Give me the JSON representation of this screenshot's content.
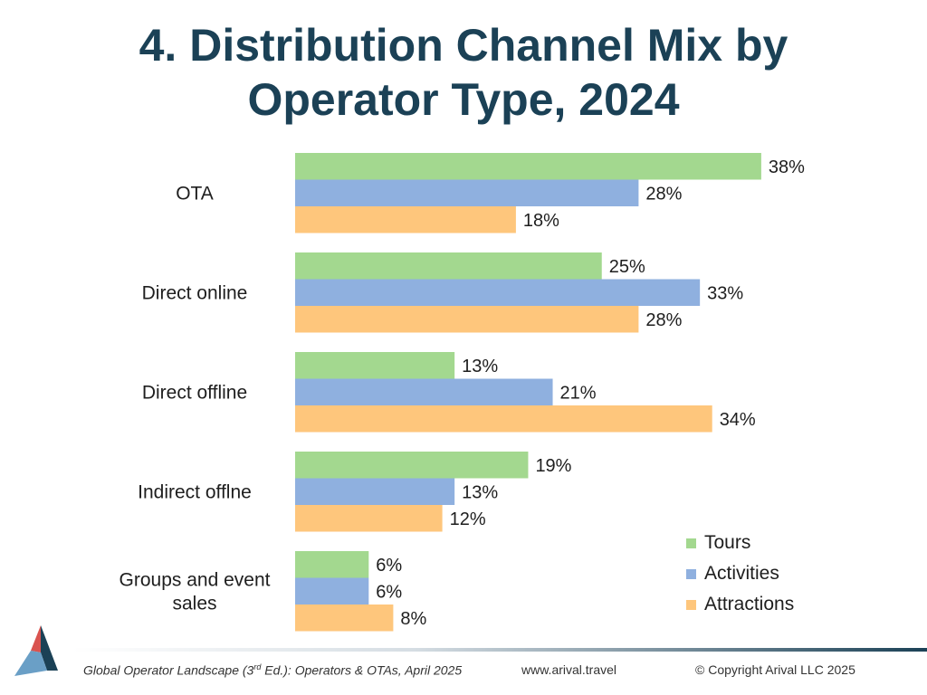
{
  "title_line1": "4. Distribution Channel Mix by",
  "title_line2": "Operator Type, 2024",
  "colors": {
    "tours": "#a3d88f",
    "activities": "#8fb0df",
    "attractions": "#fec67c",
    "title": "#1b4156",
    "logo_red": "#d9534f",
    "logo_navy": "#1b4156",
    "logo_blue": "#6a9fc6"
  },
  "chart_data": {
    "type": "bar",
    "orientation": "horizontal",
    "title": "4. Distribution Channel Mix by Operator Type, 2024",
    "categories": [
      "OTA",
      "Direct online",
      "Direct offline",
      "Indirect offlne",
      "Groups and event sales"
    ],
    "series": [
      {
        "name": "Tours",
        "values": [
          38,
          25,
          13,
          19,
          6
        ]
      },
      {
        "name": "Activities",
        "values": [
          28,
          33,
          21,
          13,
          6
        ]
      },
      {
        "name": "Attractions",
        "values": [
          18,
          28,
          34,
          12,
          8
        ]
      }
    ],
    "value_suffix": "%",
    "xlim": [
      0,
      40
    ],
    "grid": false,
    "legend": "bottom-right"
  },
  "legend": [
    "Tours",
    "Activities",
    "Attractions"
  ],
  "footer": {
    "source_prefix": "Global Operator Landscape (3",
    "source_sup": "rd",
    "source_suffix": " Ed.):  Operators & OTAs, April 2025",
    "website": "www.arival.travel",
    "copyright": "© Copyright Arival LLC 2025"
  }
}
